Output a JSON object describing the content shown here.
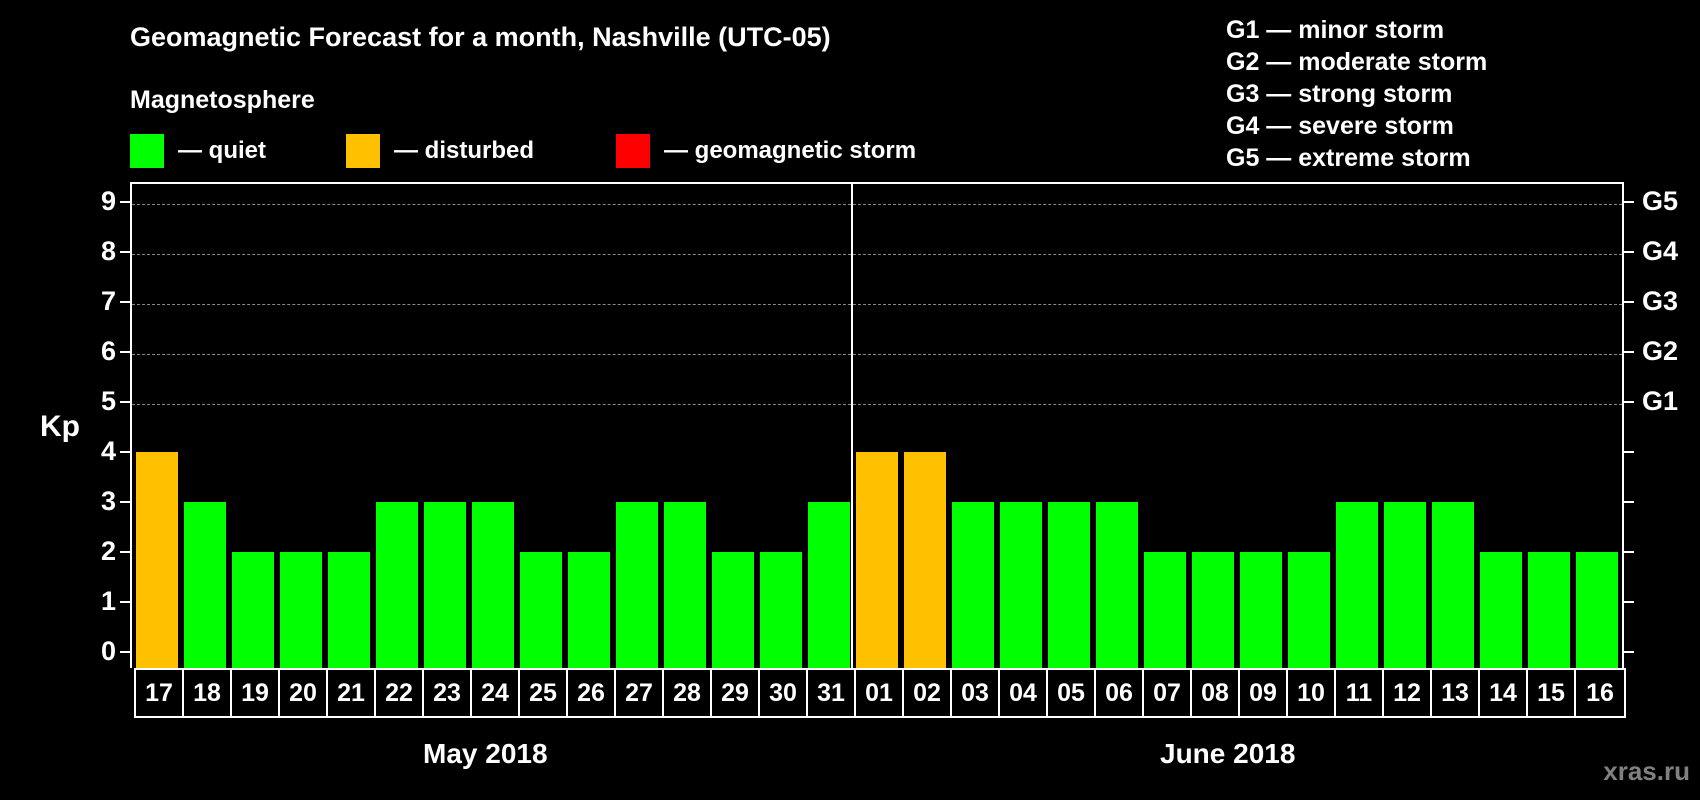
{
  "header": {
    "title": "Geomagnetic Forecast for a month, Nashville (UTC-05)",
    "subtitle": "Magnetosphere"
  },
  "legend": [
    {
      "label": "— quiet",
      "color": "#00ff00"
    },
    {
      "label": "— disturbed",
      "color": "#ffc000"
    },
    {
      "label": "— geomagnetic storm",
      "color": "#ff0000"
    }
  ],
  "storm_scale": [
    "G1 — minor storm",
    "G2 — moderate storm",
    "G3 — strong storm",
    "G4 — severe storm",
    "G5 — extreme storm"
  ],
  "axis": {
    "ylabel": "Kp",
    "yticks": [
      "0",
      "1",
      "2",
      "3",
      "4",
      "5",
      "6",
      "7",
      "8",
      "9"
    ],
    "right_ticks": [
      {
        "kp": 5,
        "label": "G1"
      },
      {
        "kp": 6,
        "label": "G2"
      },
      {
        "kp": 7,
        "label": "G3"
      },
      {
        "kp": 8,
        "label": "G4"
      },
      {
        "kp": 9,
        "label": "G5"
      }
    ]
  },
  "months": {
    "first": "May 2018",
    "second": "June 2018"
  },
  "watermark": "xras.ru",
  "chart_data": {
    "type": "bar",
    "title": "Geomagnetic Forecast for a month, Nashville (UTC-05)",
    "xlabel": "May 2018 / June 2018",
    "ylabel": "Kp",
    "ylim": [
      0,
      9
    ],
    "grid": "dashed horizontal lines at Kp 5-9",
    "categories": [
      "17",
      "18",
      "19",
      "20",
      "21",
      "22",
      "23",
      "24",
      "25",
      "26",
      "27",
      "28",
      "29",
      "30",
      "31",
      "01",
      "02",
      "03",
      "04",
      "05",
      "06",
      "07",
      "08",
      "09",
      "10",
      "11",
      "12",
      "13",
      "14",
      "15",
      "16"
    ],
    "values": [
      4,
      3,
      2,
      2,
      2,
      3,
      3,
      3,
      2,
      2,
      3,
      3,
      2,
      2,
      3,
      4,
      4,
      3,
      3,
      3,
      3,
      2,
      2,
      2,
      2,
      3,
      3,
      3,
      2,
      2,
      2
    ],
    "colors": [
      "#ffc000",
      "#00ff00",
      "#00ff00",
      "#00ff00",
      "#00ff00",
      "#00ff00",
      "#00ff00",
      "#00ff00",
      "#00ff00",
      "#00ff00",
      "#00ff00",
      "#00ff00",
      "#00ff00",
      "#00ff00",
      "#00ff00",
      "#ffc000",
      "#ffc000",
      "#00ff00",
      "#00ff00",
      "#00ff00",
      "#00ff00",
      "#00ff00",
      "#00ff00",
      "#00ff00",
      "#00ff00",
      "#00ff00",
      "#00ff00",
      "#00ff00",
      "#00ff00",
      "#00ff00",
      "#00ff00"
    ],
    "status": [
      "disturbed",
      "quiet",
      "quiet",
      "quiet",
      "quiet",
      "quiet",
      "quiet",
      "quiet",
      "quiet",
      "quiet",
      "quiet",
      "quiet",
      "quiet",
      "quiet",
      "quiet",
      "disturbed",
      "disturbed",
      "quiet",
      "quiet",
      "quiet",
      "quiet",
      "quiet",
      "quiet",
      "quiet",
      "quiet",
      "quiet",
      "quiet",
      "quiet",
      "quiet",
      "quiet",
      "quiet"
    ],
    "month_boundary_after_index": 14,
    "legend": [
      "quiet (green)",
      "disturbed (orange)",
      "geomagnetic storm (red)"
    ],
    "right_axis_labels": {
      "5": "G1",
      "6": "G2",
      "7": "G3",
      "8": "G4",
      "9": "G5"
    }
  }
}
